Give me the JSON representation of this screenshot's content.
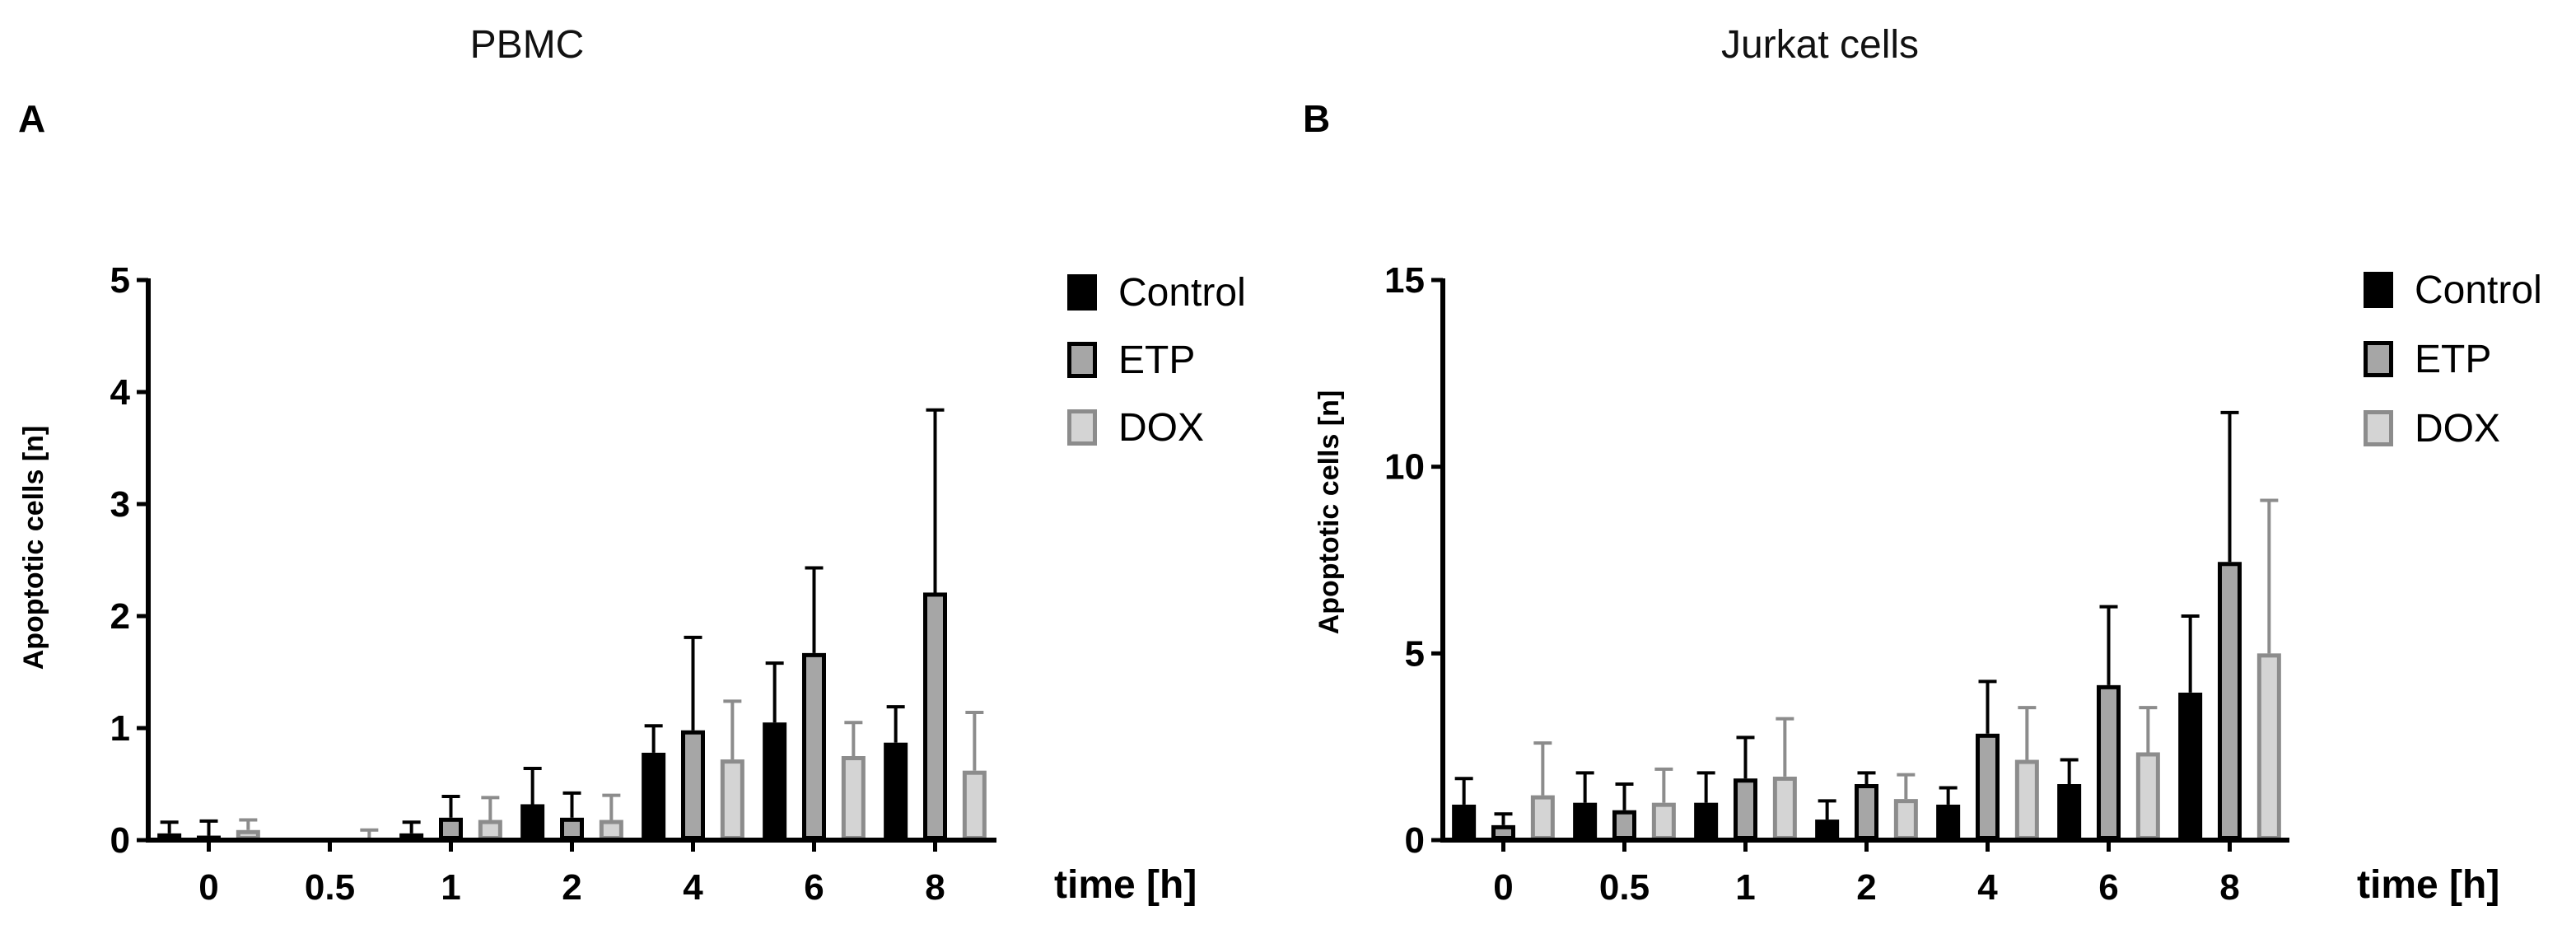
{
  "colors": {
    "control_fill": "#000000",
    "control_stroke": "#000000",
    "etp_fill": "#a6a6a6",
    "etp_stroke": "#000000",
    "dox_fill": "#d4d4d4",
    "dox_stroke": "#8c8c8c",
    "axis": "#000000"
  },
  "chart_data": [
    {
      "type": "bar",
      "panel": "A",
      "title": "PBMC",
      "xlabel": "time [h]",
      "ylabel": "Apoptotic cells [n]",
      "ylim": [
        0,
        5
      ],
      "yticks": [
        "0",
        "1",
        "2",
        "3",
        "4",
        "5"
      ],
      "categories": [
        "0",
        "0.5",
        "1",
        "2",
        "4",
        "6",
        "8"
      ],
      "error_bars": "upper",
      "legend_position": "right",
      "series": [
        {
          "name": "Control",
          "values": [
            0.06,
            0.0,
            0.06,
            0.32,
            0.78,
            1.05,
            0.87
          ],
          "errors": [
            0.1,
            0.0,
            0.1,
            0.32,
            0.24,
            0.53,
            0.32
          ]
        },
        {
          "name": "ETP",
          "values": [
            0.04,
            0.0,
            0.2,
            0.2,
            0.98,
            1.67,
            2.21
          ],
          "errors": [
            0.13,
            0.0,
            0.19,
            0.22,
            0.83,
            0.76,
            1.63
          ]
        },
        {
          "name": "DOX",
          "values": [
            0.09,
            0.0,
            0.18,
            0.18,
            0.72,
            0.75,
            0.62
          ],
          "errors": [
            0.09,
            0.09,
            0.2,
            0.22,
            0.52,
            0.3,
            0.52
          ]
        }
      ]
    },
    {
      "type": "bar",
      "panel": "B",
      "title": "Jurkat cells",
      "xlabel": "time [h]",
      "ylabel": "Apoptotic cells [n]",
      "ylim": [
        0,
        15
      ],
      "yticks": [
        "0",
        "5",
        "10",
        "15"
      ],
      "categories": [
        "0",
        "0.5",
        "1",
        "2",
        "4",
        "6",
        "8"
      ],
      "error_bars": "upper",
      "legend_position": "right",
      "series": [
        {
          "name": "Control",
          "values": [
            0.95,
            1.0,
            1.0,
            0.55,
            0.95,
            1.5,
            3.95
          ],
          "errors": [
            0.7,
            0.8,
            0.8,
            0.5,
            0.45,
            0.65,
            2.05
          ]
        },
        {
          "name": "ETP",
          "values": [
            0.4,
            0.8,
            1.65,
            1.5,
            2.85,
            4.15,
            7.45
          ],
          "errors": [
            0.3,
            0.7,
            1.1,
            0.3,
            1.4,
            2.1,
            4.0
          ]
        },
        {
          "name": "DOX",
          "values": [
            1.2,
            1.0,
            1.7,
            1.1,
            2.15,
            2.35,
            5.0
          ],
          "errors": [
            1.4,
            0.9,
            1.55,
            0.65,
            1.4,
            1.2,
            4.1
          ]
        }
      ]
    }
  ]
}
